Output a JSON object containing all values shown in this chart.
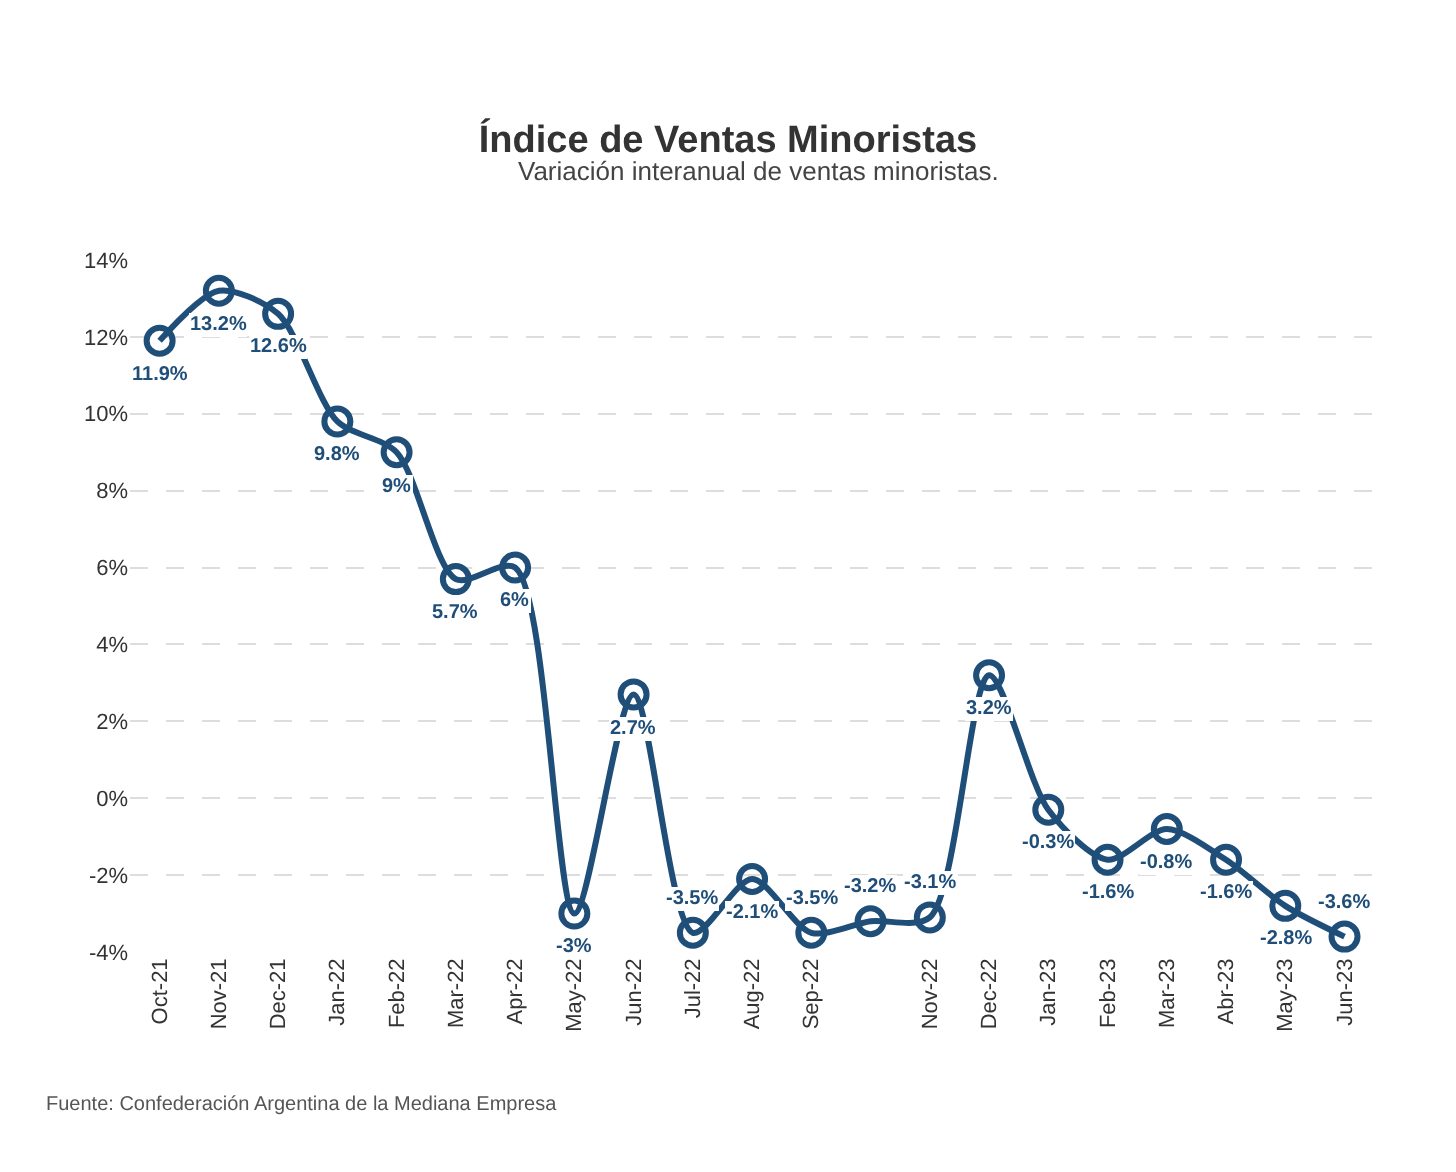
{
  "chart_data": {
    "type": "line",
    "title": "Índice de Ventas Minoristas",
    "subtitle": "Variación interanual de ventas minoristas.",
    "annotations": [
      "Fuente: Confederación Argentina de la Mediana Empresa"
    ],
    "categories": [
      "Oct-21",
      "Nov-21",
      "Dec-21",
      "Jan-22",
      "Feb-22",
      "Mar-22",
      "Apr-22",
      "May-22",
      "Jun-22",
      "Jul-22",
      "Aug-22",
      "Sep-22",
      null,
      "Nov-22",
      "Dec-22",
      "Jan-23",
      "Feb-23",
      "Mar-23",
      "Abr-23",
      "May-23",
      "Jun-23"
    ],
    "series": [
      {
        "color": "#1f4e79",
        "values": [
          11.9,
          13.2,
          12.6,
          9.8,
          9,
          5.7,
          6,
          -3,
          2.7,
          -3.5,
          -2.1,
          -3.5,
          -3.2,
          -3.1,
          3.2,
          -0.3,
          -1.6,
          -0.8,
          -1.6,
          -2.8,
          -3.6
        ],
        "value_labels": [
          "11.9%",
          "13.2%",
          "12.6%",
          "9.8%",
          "9%",
          "5.7%",
          "6%",
          "-3%",
          "2.7%",
          "-3.5%",
          "-2.1%",
          "-3.5%",
          "-3.2%",
          "-3.1%",
          "3.2%",
          "-0.3%",
          "-1.6%",
          "-0.8%",
          "-1.6%",
          "-2.8%",
          "-3.6%"
        ]
      }
    ],
    "ylim": [
      -4,
      14
    ],
    "yticks": [
      {
        "value": -4,
        "label": "-4%"
      },
      {
        "value": -2,
        "label": "-2%"
      },
      {
        "value": 0,
        "label": "0%"
      },
      {
        "value": 2,
        "label": "2%"
      },
      {
        "value": 4,
        "label": "4%"
      },
      {
        "value": 6,
        "label": "6%"
      },
      {
        "value": 8,
        "label": "8%"
      },
      {
        "value": 10,
        "label": "10%"
      },
      {
        "value": 12,
        "label": "12%"
      },
      {
        "value": 14,
        "label": "14%"
      }
    ],
    "grid": "y",
    "marker": "circle",
    "line_style": "solid"
  }
}
